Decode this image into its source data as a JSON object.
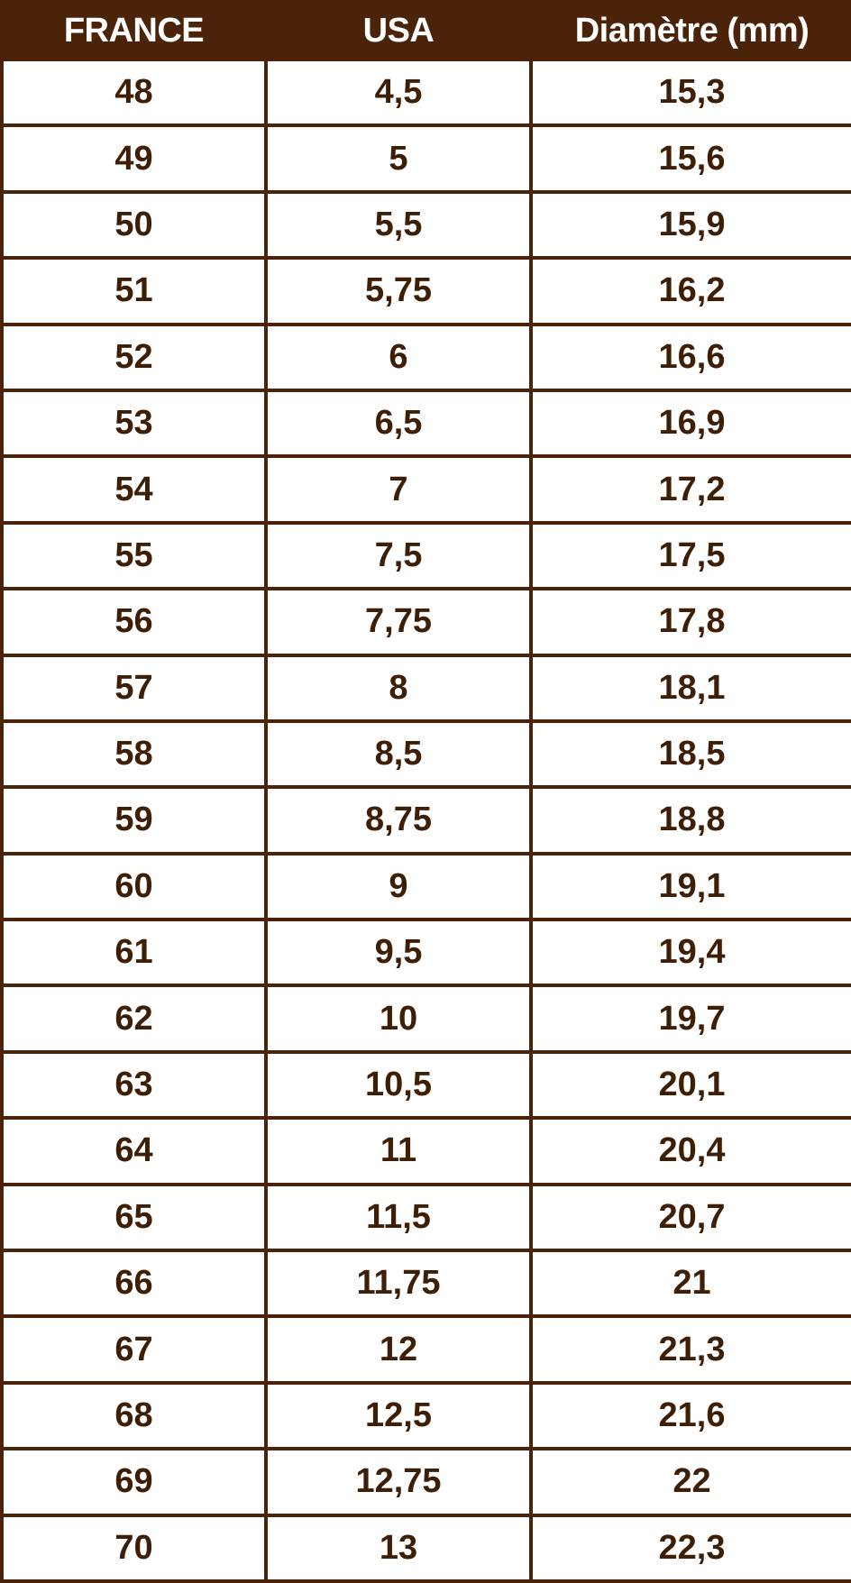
{
  "table": {
    "headers": [
      "FRANCE",
      "USA",
      "Diamètre (mm)"
    ],
    "rows": [
      [
        "48",
        "4,5",
        "15,3"
      ],
      [
        "49",
        "5",
        "15,6"
      ],
      [
        "50",
        "5,5",
        "15,9"
      ],
      [
        "51",
        "5,75",
        "16,2"
      ],
      [
        "52",
        "6",
        "16,6"
      ],
      [
        "53",
        "6,5",
        "16,9"
      ],
      [
        "54",
        "7",
        "17,2"
      ],
      [
        "55",
        "7,5",
        "17,5"
      ],
      [
        "56",
        "7,75",
        "17,8"
      ],
      [
        "57",
        "8",
        "18,1"
      ],
      [
        "58",
        "8,5",
        "18,5"
      ],
      [
        "59",
        "8,75",
        "18,8"
      ],
      [
        "60",
        "9",
        "19,1"
      ],
      [
        "61",
        "9,5",
        "19,4"
      ],
      [
        "62",
        "10",
        "19,7"
      ],
      [
        "63",
        "10,5",
        "20,1"
      ],
      [
        "64",
        "11",
        "20,4"
      ],
      [
        "65",
        "11,5",
        "20,7"
      ],
      [
        "66",
        "11,75",
        "21"
      ],
      [
        "67",
        "12",
        "21,3"
      ],
      [
        "68",
        "12,5",
        "21,6"
      ],
      [
        "69",
        "12,75",
        "22"
      ],
      [
        "70",
        "13",
        "22,3"
      ]
    ]
  },
  "colors": {
    "header_bg": "#4a2308",
    "text": "#3e1f06",
    "border": "#4a2308"
  }
}
